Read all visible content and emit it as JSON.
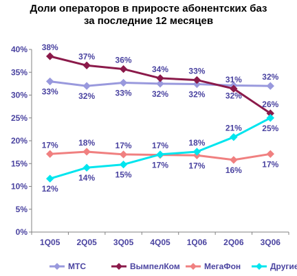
{
  "chart_data": {
    "type": "line",
    "title_line1": "Доли операторов в приросте абонентских баз",
    "title_line2": "за последние 12 месяцев",
    "categories": [
      "1Q05",
      "2Q05",
      "3Q05",
      "4Q05",
      "1Q06",
      "2Q06",
      "3Q06"
    ],
    "ylim": [
      0,
      40
    ],
    "yticks": [
      "0%",
      "5%",
      "10%",
      "15%",
      "20%",
      "25%",
      "30%",
      "35%",
      "40%"
    ],
    "grid": false,
    "legend_position": "bottom",
    "series": [
      {
        "name": "МТС",
        "color": "#9999dd",
        "values": [
          33,
          32,
          32.7,
          32.5,
          32.4,
          32.1,
          32
        ],
        "labels": [
          "33%",
          "32%",
          "33%",
          "32%",
          "32%",
          "32%",
          "32%"
        ],
        "label_pos": [
          "below",
          "below",
          "below",
          "below",
          "below",
          "below",
          "above"
        ]
      },
      {
        "name": "ВымпелКом",
        "color": "#8b1a4a",
        "values": [
          38.5,
          36.5,
          35.7,
          33.7,
          33.3,
          31.4,
          26
        ],
        "labels": [
          "38%",
          "37%",
          "36%",
          "34%",
          "33%",
          "31%",
          "26%"
        ],
        "label_pos": [
          "above",
          "above",
          "above",
          "above",
          "above",
          "above",
          "above"
        ]
      },
      {
        "name": "МегаФон",
        "color": "#f08080",
        "values": [
          17.1,
          17.6,
          17,
          16.9,
          16.8,
          15.8,
          17.1
        ],
        "labels": [
          "17%",
          "18%",
          "17%",
          "17%",
          "17%",
          "16%",
          "17%"
        ],
        "label_pos": [
          "above",
          "above",
          "above",
          "below",
          "below",
          "below",
          "below"
        ]
      },
      {
        "name": "Другие",
        "color": "#00e5ee",
        "values": [
          11.7,
          14.1,
          14.8,
          17,
          17.6,
          20.8,
          25
        ],
        "labels": [
          "12%",
          "14%",
          "15%",
          "17%",
          "18%",
          "21%",
          "25%"
        ],
        "label_pos": [
          "below",
          "below",
          "below",
          "above",
          "above",
          "above",
          "below"
        ]
      }
    ]
  }
}
